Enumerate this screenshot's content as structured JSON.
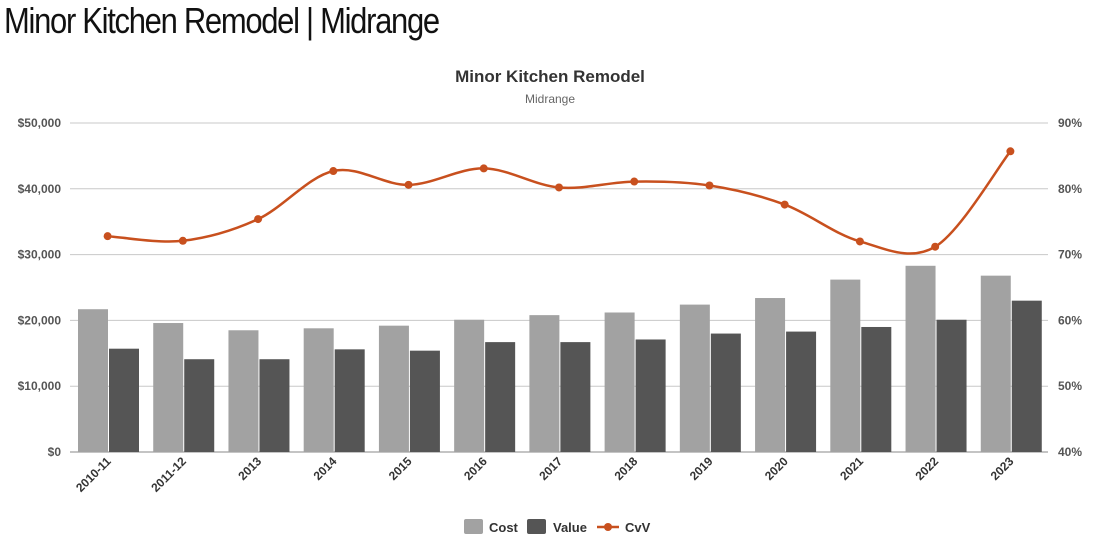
{
  "page": {
    "heading": "Minor Kitchen Remodel | Midrange"
  },
  "colors": {
    "cost": "#a2a2a2",
    "value": "#555555",
    "cvv": "#c8501e",
    "grid": "#c8c8c8"
  },
  "chart_data": {
    "type": "bar",
    "title": "Minor Kitchen Remodel",
    "subtitle": "Midrange",
    "categories": [
      "2010-11",
      "2011-12",
      "2013",
      "2014",
      "2015",
      "2016",
      "2017",
      "2018",
      "2019",
      "2020",
      "2021",
      "2022",
      "2023"
    ],
    "series": [
      {
        "name": "Cost",
        "type": "bar",
        "axis": "left",
        "values": [
          21700,
          19600,
          18500,
          18800,
          19200,
          20100,
          20800,
          21200,
          22400,
          23400,
          26200,
          28300,
          26800
        ]
      },
      {
        "name": "Value",
        "type": "bar",
        "axis": "left",
        "values": [
          15700,
          14100,
          14100,
          15600,
          15400,
          16700,
          16700,
          17100,
          18000,
          18300,
          19000,
          20100,
          23000
        ]
      },
      {
        "name": "CvV",
        "type": "line",
        "axis": "right",
        "smooth": true,
        "values": [
          72.8,
          72.1,
          75.4,
          82.7,
          80.6,
          83.1,
          80.2,
          81.1,
          80.5,
          77.6,
          72.0,
          71.2,
          85.7
        ]
      }
    ],
    "y_left": {
      "min": 0,
      "max": 50000,
      "ticks": [
        "$0",
        "$10,000",
        "$20,000",
        "$30,000",
        "$40,000",
        "$50,000"
      ]
    },
    "y_right": {
      "min": 40,
      "max": 90,
      "ticks": [
        "40%",
        "50%",
        "60%",
        "70%",
        "80%",
        "90%"
      ]
    },
    "grid": true,
    "legend_position": "bottom"
  }
}
